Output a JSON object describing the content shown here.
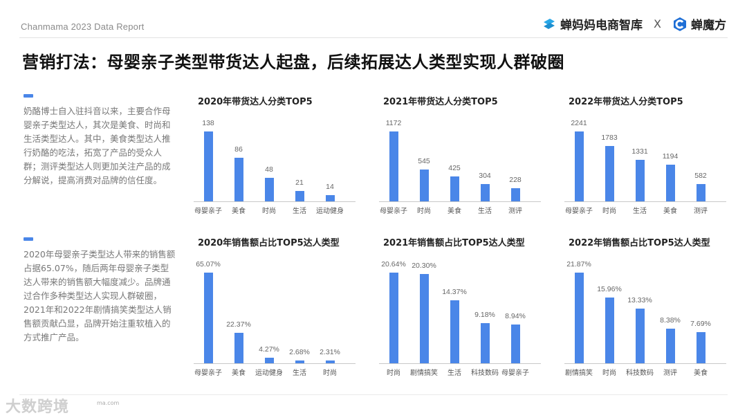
{
  "header": {
    "report_label": "Chanmama 2023 Data Report",
    "logo_primary": "蝉妈妈电商智库",
    "logo_separator": "X",
    "logo_secondary": "蝉魔方",
    "brand_color": "#29a8e8",
    "brand_color_secondary": "#1f6fd6"
  },
  "page_title": "营销打法：母婴亲子类型带货达人起盘，后续拓展达人类型实现人群破圈",
  "sidebar": {
    "blocks": [
      {
        "text": "奶酪博士自入驻抖音以来，主要合作母婴亲子类型达人，其次是美食、时尚和生活类型达人。其中，美食类型达人推行奶酪的吃法，拓宽了产品的受众人群；测评类型达人则更加关注产品的成分解说，提高消费对品牌的信任度。"
      },
      {
        "text": "2020年母婴亲子类型达人带来的销售额占据65.07%，随后两年母婴亲子类型达人带来的销售额大幅度减少。品牌通过合作多种类型达人实现人群破圈，2021年和2022年剧情搞笑类型达人销售额贡献凸显，品牌开始注重软植入的方式推广产品。"
      }
    ]
  },
  "footer": {
    "watermark": "大数跨境",
    "site": "ma.com"
  },
  "accent_color": "#4a86e8",
  "chart_data": [
    {
      "type": "bar",
      "title": "2020年带货达人分类TOP5",
      "categories": [
        "母婴亲子",
        "美食",
        "时尚",
        "生活",
        "运动健身"
      ],
      "values": [
        138,
        86,
        48,
        21,
        14
      ],
      "labels": [
        "138",
        "86",
        "48",
        "21",
        "14"
      ],
      "xlabel": "",
      "ylabel": "",
      "grid": false
    },
    {
      "type": "bar",
      "title": "2021年带货达人分类TOP5",
      "categories": [
        "母婴亲子",
        "时尚",
        "美食",
        "生活",
        "测评"
      ],
      "values": [
        1172,
        545,
        425,
        304,
        228
      ],
      "labels": [
        "1172",
        "545",
        "425",
        "304",
        "228"
      ],
      "xlabel": "",
      "ylabel": "",
      "grid": false
    },
    {
      "type": "bar",
      "title": "2022年带货达人分类TOP5",
      "categories": [
        "母婴亲子",
        "时尚",
        "生活",
        "美食",
        "测评"
      ],
      "values": [
        2241,
        1783,
        1331,
        1194,
        582
      ],
      "labels": [
        "2241",
        "1783",
        "1331",
        "1194",
        "582"
      ],
      "xlabel": "",
      "ylabel": "",
      "grid": false
    },
    {
      "type": "bar",
      "title": "2020年销售额占比TOP5达人类型",
      "categories": [
        "母婴亲子",
        "美食",
        "运动健身",
        "生活",
        "时尚"
      ],
      "values": [
        65.07,
        22.37,
        4.27,
        2.68,
        2.31
      ],
      "labels": [
        "65.07%",
        "22.37%",
        "4.27%",
        "2.68%",
        "2.31%"
      ],
      "xlabel": "",
      "ylabel": "",
      "grid": false
    },
    {
      "type": "bar",
      "title": "2021年销售额占比TOP5达人类型",
      "categories": [
        "时尚",
        "剧情搞笑",
        "生活",
        "科技数码",
        "母婴亲子"
      ],
      "values": [
        20.64,
        20.3,
        14.37,
        9.18,
        8.94
      ],
      "labels": [
        "20.64%",
        "20.30%",
        "14.37%",
        "9.18%",
        "8.94%"
      ],
      "xlabel": "",
      "ylabel": "",
      "grid": false
    },
    {
      "type": "bar",
      "title": "2022年销售额占比TOP5达人类型",
      "categories": [
        "剧情搞笑",
        "时尚",
        "科技数码",
        "测评",
        "美食"
      ],
      "values": [
        21.87,
        15.96,
        13.33,
        8.38,
        7.69
      ],
      "labels": [
        "21.87%",
        "15.96%",
        "13.33%",
        "8.38%",
        "7.69%"
      ],
      "xlabel": "",
      "ylabel": "",
      "grid": false
    }
  ]
}
